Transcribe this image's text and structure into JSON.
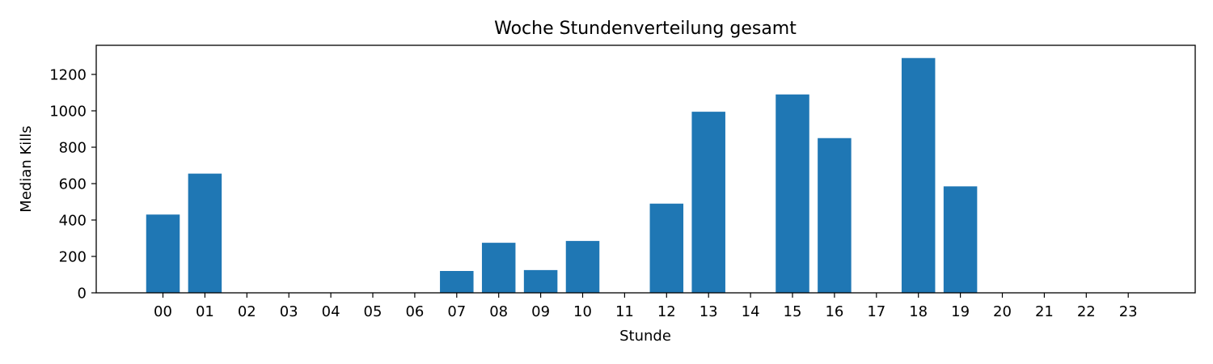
{
  "chart_data": {
    "type": "bar",
    "title": "Woche Stundenverteilung gesamt",
    "xlabel": "Stunde",
    "ylabel": "Median Kills",
    "categories": [
      "00",
      "01",
      "02",
      "03",
      "04",
      "05",
      "06",
      "07",
      "08",
      "09",
      "10",
      "11",
      "12",
      "13",
      "14",
      "15",
      "16",
      "17",
      "18",
      "19",
      "20",
      "21",
      "22",
      "23"
    ],
    "values": [
      430,
      655,
      0,
      0,
      0,
      0,
      0,
      120,
      275,
      125,
      285,
      0,
      490,
      995,
      0,
      1090,
      850,
      0,
      1290,
      585,
      0,
      0,
      0,
      0
    ],
    "ylim": [
      0,
      1360
    ],
    "yticks": [
      0,
      200,
      400,
      600,
      800,
      1000,
      1200
    ],
    "bar_color": "#1f77b4",
    "grid": false,
    "legend": "none"
  }
}
